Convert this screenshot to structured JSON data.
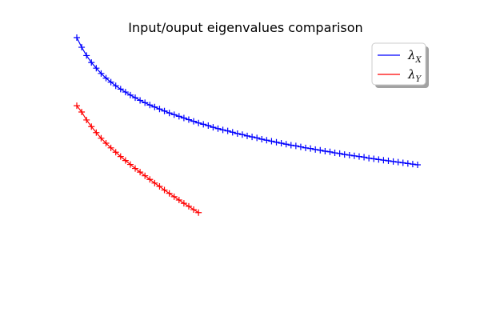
{
  "chart_data": {
    "type": "line",
    "title": "Input/ouput eigenvalues comparison",
    "xlabel": "",
    "ylabel": "",
    "axes_visible": false,
    "grid": false,
    "legend_position": "top-right",
    "marker": "+",
    "xlim": [
      0,
      72
    ],
    "ylim": [
      0,
      1
    ],
    "series": [
      {
        "name": "λ_X",
        "legend_main": "λ",
        "legend_sub": "X",
        "color": "#0000ff",
        "x": [
          0,
          1,
          2,
          3,
          4,
          5,
          6,
          7,
          8,
          9,
          10,
          11,
          12,
          13,
          14,
          15,
          16,
          17,
          18,
          19,
          20,
          21,
          22,
          23,
          24,
          25,
          26,
          27,
          28,
          29,
          30,
          31,
          32,
          33,
          34,
          35,
          36,
          37,
          38,
          39,
          40,
          41,
          42,
          43,
          44,
          45,
          46,
          47,
          48,
          49,
          50,
          51,
          52,
          53,
          54,
          55,
          56,
          57,
          58,
          59,
          60,
          61,
          62,
          63,
          64,
          65,
          66,
          67,
          68,
          69,
          70
        ],
        "y": [
          0.9,
          0.871,
          0.846,
          0.825,
          0.808,
          0.792,
          0.778,
          0.766,
          0.755,
          0.745,
          0.736,
          0.727,
          0.719,
          0.711,
          0.704,
          0.697,
          0.691,
          0.685,
          0.679,
          0.673,
          0.668,
          0.663,
          0.658,
          0.653,
          0.648,
          0.643,
          0.639,
          0.635,
          0.63,
          0.626,
          0.622,
          0.619,
          0.615,
          0.611,
          0.608,
          0.604,
          0.601,
          0.598,
          0.594,
          0.591,
          0.588,
          0.585,
          0.582,
          0.579,
          0.576,
          0.574,
          0.571,
          0.568,
          0.566,
          0.563,
          0.561,
          0.558,
          0.556,
          0.553,
          0.551,
          0.548,
          0.546,
          0.544,
          0.542,
          0.54,
          0.537,
          0.535,
          0.533,
          0.531,
          0.529,
          0.527,
          0.525,
          0.523,
          0.521,
          0.519,
          0.517
        ]
      },
      {
        "name": "λ_Y",
        "legend_main": "λ",
        "legend_sub": "Y",
        "color": "#ff0000",
        "x": [
          0,
          1,
          2,
          3,
          4,
          5,
          6,
          7,
          8,
          9,
          10,
          11,
          12,
          13,
          14,
          15,
          16,
          17,
          18,
          19,
          20,
          21,
          22,
          23,
          24,
          25
        ],
        "y": [
          0.695,
          0.676,
          0.652,
          0.632,
          0.614,
          0.597,
          0.582,
          0.568,
          0.555,
          0.542,
          0.53,
          0.518,
          0.506,
          0.495,
          0.484,
          0.473,
          0.462,
          0.452,
          0.441,
          0.431,
          0.421,
          0.411,
          0.401,
          0.392,
          0.382,
          0.373
        ]
      }
    ]
  }
}
